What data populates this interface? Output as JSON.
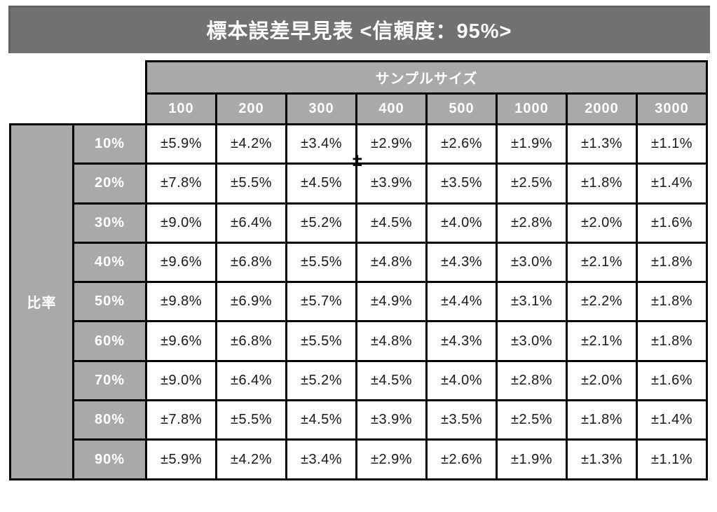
{
  "title": "標本誤差早見表 <信頼度：95%>",
  "table": {
    "group_header": "サンプルサイズ",
    "row_axis_label": "比率",
    "sample_sizes": [
      "100",
      "200",
      "300",
      "400",
      "500",
      "1000",
      "2000",
      "3000"
    ],
    "rows": [
      {
        "label": "10%",
        "values": [
          "±5.9%",
          "±4.2%",
          "±3.4%",
          "±2.9%",
          "±2.6%",
          "±1.9%",
          "±1.3%",
          "±1.1%"
        ]
      },
      {
        "label": "20%",
        "values": [
          "±7.8%",
          "±5.5%",
          "±4.5%",
          "±3.9%",
          "±3.5%",
          "±2.5%",
          "±1.8%",
          "±1.4%"
        ]
      },
      {
        "label": "30%",
        "values": [
          "±9.0%",
          "±6.4%",
          "±5.2%",
          "±4.5%",
          "±4.0%",
          "±2.8%",
          "±2.0%",
          "±1.6%"
        ]
      },
      {
        "label": "40%",
        "values": [
          "±9.6%",
          "±6.8%",
          "±5.5%",
          "±4.8%",
          "±4.3%",
          "±3.0%",
          "±2.1%",
          "±1.8%"
        ]
      },
      {
        "label": "50%",
        "values": [
          "±9.8%",
          "±6.9%",
          "±5.7%",
          "±4.9%",
          "±4.4%",
          "±3.1%",
          "±2.2%",
          "±1.8%"
        ]
      },
      {
        "label": "60%",
        "values": [
          "±9.6%",
          "±6.8%",
          "±5.5%",
          "±4.8%",
          "±4.3%",
          "±3.0%",
          "±2.1%",
          "±1.8%"
        ]
      },
      {
        "label": "70%",
        "values": [
          "±9.0%",
          "±6.4%",
          "±5.2%",
          "±4.5%",
          "±4.0%",
          "±2.8%",
          "±2.0%",
          "±1.6%"
        ]
      },
      {
        "label": "80%",
        "values": [
          "±7.8%",
          "±5.5%",
          "±4.5%",
          "±3.9%",
          "±3.5%",
          "±2.5%",
          "±1.8%",
          "±1.4%"
        ]
      },
      {
        "label": "90%",
        "values": [
          "±5.9%",
          "±4.2%",
          "±3.4%",
          "±2.9%",
          "±2.6%",
          "±1.9%",
          "±1.3%",
          "±1.1%"
        ]
      }
    ],
    "artifact_plus_minus": "±"
  },
  "colors": {
    "title_bar_bg": "#717171",
    "header_cell_bg": "#a9a9a9",
    "border": "#000000",
    "header_text": "#ffffff",
    "cell_text": "#1a1a1a",
    "page_bg": "#ffffff"
  },
  "chart_data": {
    "type": "table",
    "title": "標本誤差早見表 <信頼度：95%>",
    "confidence_level": "95%",
    "column_group_label": "サンプルサイズ",
    "row_group_label": "比率",
    "columns": [
      100,
      200,
      300,
      400,
      500,
      1000,
      2000,
      3000
    ],
    "row_categories": [
      "10%",
      "20%",
      "30%",
      "40%",
      "50%",
      "60%",
      "70%",
      "80%",
      "90%"
    ],
    "margin_of_error_pct": [
      [
        5.9,
        4.2,
        3.4,
        2.9,
        2.6,
        1.9,
        1.3,
        1.1
      ],
      [
        7.8,
        5.5,
        4.5,
        3.9,
        3.5,
        2.5,
        1.8,
        1.4
      ],
      [
        9.0,
        6.4,
        5.2,
        4.5,
        4.0,
        2.8,
        2.0,
        1.6
      ],
      [
        9.6,
        6.8,
        5.5,
        4.8,
        4.3,
        3.0,
        2.1,
        1.8
      ],
      [
        9.8,
        6.9,
        5.7,
        4.9,
        4.4,
        3.1,
        2.2,
        1.8
      ],
      [
        9.6,
        6.8,
        5.5,
        4.8,
        4.3,
        3.0,
        2.1,
        1.8
      ],
      [
        9.0,
        6.4,
        5.2,
        4.5,
        4.0,
        2.8,
        2.0,
        1.6
      ],
      [
        7.8,
        5.5,
        4.5,
        3.9,
        3.5,
        2.5,
        1.8,
        1.4
      ],
      [
        5.9,
        4.2,
        3.4,
        2.9,
        2.6,
        1.9,
        1.3,
        1.1
      ]
    ],
    "value_prefix": "±",
    "value_suffix": "%"
  }
}
